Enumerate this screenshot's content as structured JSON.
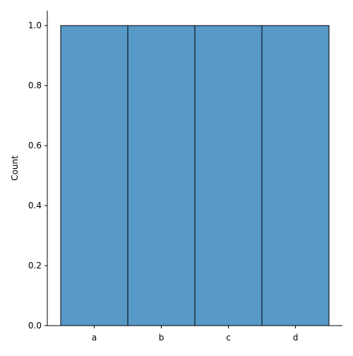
{
  "chart_data": {
    "type": "bar",
    "categories": [
      "a",
      "b",
      "c",
      "d"
    ],
    "values": [
      1,
      1,
      1,
      1
    ],
    "title": "",
    "xlabel": "",
    "ylabel": "Count",
    "ylim": [
      0,
      1.05
    ],
    "yticks": [
      0.0,
      0.2,
      0.4,
      0.6,
      0.8,
      1.0
    ],
    "ytick_labels": [
      "0.0",
      "0.2",
      "0.4",
      "0.6",
      "0.8",
      "1.0"
    ],
    "grid": false,
    "legend": "none",
    "colors": {
      "bar_fill": "#5799c7",
      "bar_edge": "#000000",
      "axis": "#000000"
    }
  }
}
